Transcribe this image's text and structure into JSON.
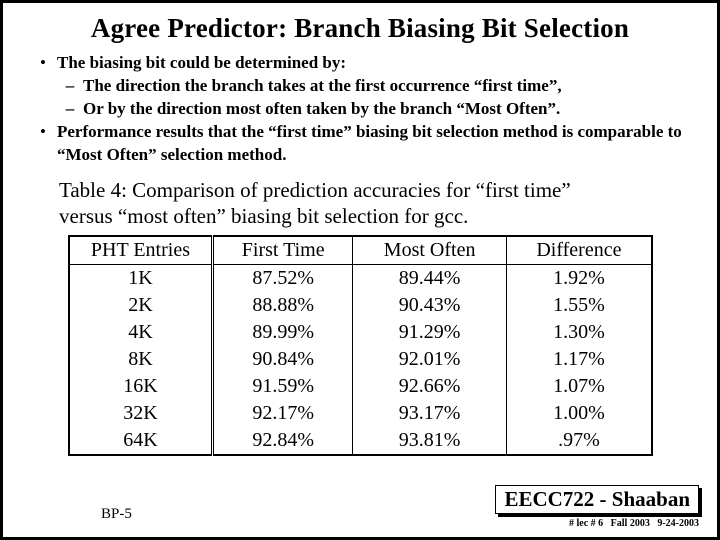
{
  "title": "Agree Predictor: Branch Biasing Bit Selection",
  "bullets": {
    "b1a": "The biasing bit could be determined by:",
    "b2a": "The direction the branch takes at the first occurrence “first time”,",
    "b2b": "Or by the direction most often taken by the branch “Most Often”.",
    "b1b": "Performance results that the “first time” biasing bit selection method is comparable to “Most Often” selection method."
  },
  "caption_l1": "Table 4: Comparison of prediction accuracies for “first time”",
  "caption_l2": "versus “most often” biasing bit selection for gcc.",
  "table": {
    "headers": [
      "PHT Entries",
      "First Time",
      "Most Often",
      "Difference"
    ],
    "rows": [
      [
        "1K",
        "87.52%",
        "89.44%",
        "1.92%"
      ],
      [
        "2K",
        "88.88%",
        "90.43%",
        "1.55%"
      ],
      [
        "4K",
        "89.99%",
        "91.29%",
        "1.30%"
      ],
      [
        "8K",
        "90.84%",
        "92.01%",
        "1.17%"
      ],
      [
        "16K",
        "91.59%",
        "92.66%",
        "1.07%"
      ],
      [
        "32K",
        "92.17%",
        "93.17%",
        "1.00%"
      ],
      [
        "64K",
        "92.84%",
        "93.81%",
        ".97%"
      ]
    ]
  },
  "footer": {
    "left": "BP-5",
    "course": "EECC722 - Shaaban",
    "lec": "# lec # 6   Fall 2003   9-24-2003"
  }
}
